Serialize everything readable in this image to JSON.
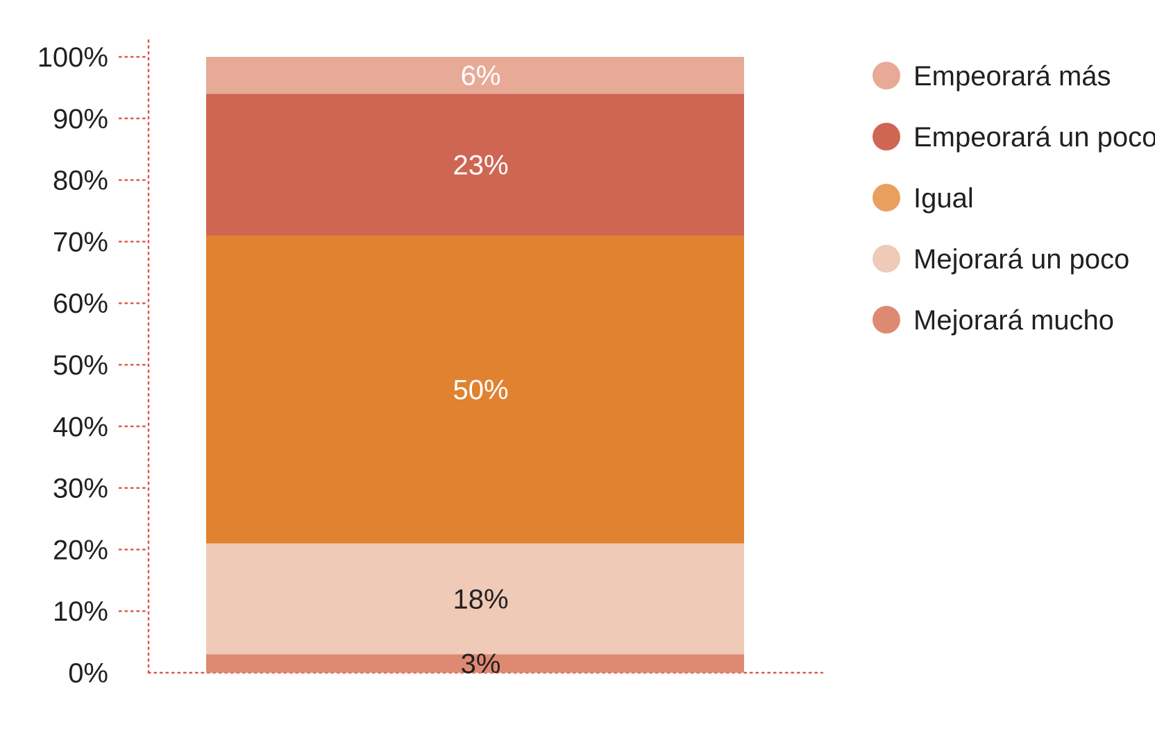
{
  "chart_data": {
    "type": "bar",
    "stacked": true,
    "categories": [
      ""
    ],
    "ylim": [
      0,
      100
    ],
    "y_ticks": [
      "0%",
      "10%",
      "20%",
      "30%",
      "40%",
      "50%",
      "60%",
      "70%",
      "80%",
      "90%",
      "100%"
    ],
    "grid": false,
    "legend_position": "top-right",
    "axis_color": "#e0584a",
    "series": [
      {
        "name": "Mejorará mucho",
        "values": [
          3
        ],
        "label": "3%",
        "color": "#de8a73",
        "label_color": "#231f20"
      },
      {
        "name": "Mejorará un poco",
        "values": [
          18
        ],
        "label": "18%",
        "color": "#eecab7",
        "label_color": "#231f20"
      },
      {
        "name": "Igual",
        "values": [
          50
        ],
        "label": "50%",
        "color": "#e08230",
        "label_color": "#ffffff"
      },
      {
        "name": "Empeorará un poco",
        "values": [
          23
        ],
        "label": "23%",
        "color": "#cf6553",
        "label_color": "#ffffff"
      },
      {
        "name": "Empeorará más",
        "values": [
          6
        ],
        "label": "6%",
        "color": "#e6aa97",
        "label_color": "#ffffff"
      }
    ],
    "legend": [
      {
        "name": "Empeorará más",
        "color": "#e6aa97"
      },
      {
        "name": "Empeorará un poco",
        "color": "#cf6553"
      },
      {
        "name": "Igual",
        "color": "#e9a05f"
      },
      {
        "name": "Mejorará un poco",
        "color": "#eecab7"
      },
      {
        "name": "Mejorará mucho",
        "color": "#de8a73"
      }
    ]
  }
}
